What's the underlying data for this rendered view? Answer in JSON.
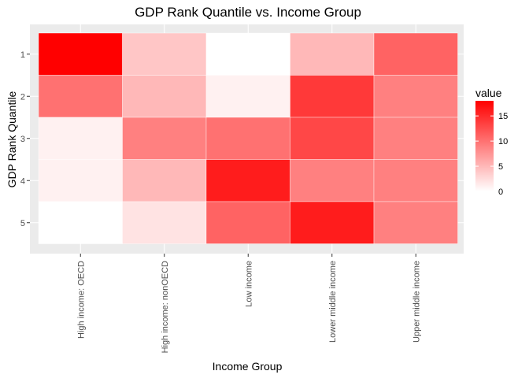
{
  "chart_data": {
    "type": "heatmap",
    "title": "GDP Rank Quantile vs. Income Group",
    "xlabel": "Income Group",
    "ylabel": "GDP Rank Quantile",
    "x_categories": [
      "High income: OECD",
      "High income: nonOECD",
      "Low income",
      "Lower middle income",
      "Upper middle income"
    ],
    "y_categories": [
      "1",
      "2",
      "3",
      "4",
      "5"
    ],
    "values": [
      [
        18,
        4,
        0,
        5,
        11
      ],
      [
        10,
        5,
        1,
        14,
        9
      ],
      [
        1,
        9,
        10,
        13,
        9
      ],
      [
        1,
        5,
        16,
        9,
        9
      ],
      [
        0,
        2,
        11,
        16,
        9
      ]
    ],
    "legend": {
      "title": "value",
      "ticks": [
        0,
        5,
        10,
        15
      ],
      "range": [
        0,
        18
      ],
      "low_color": "#ffffff",
      "high_color": "#ff0000",
      "placement": "right"
    },
    "panel_background": "#ebebeb",
    "grid": true
  }
}
